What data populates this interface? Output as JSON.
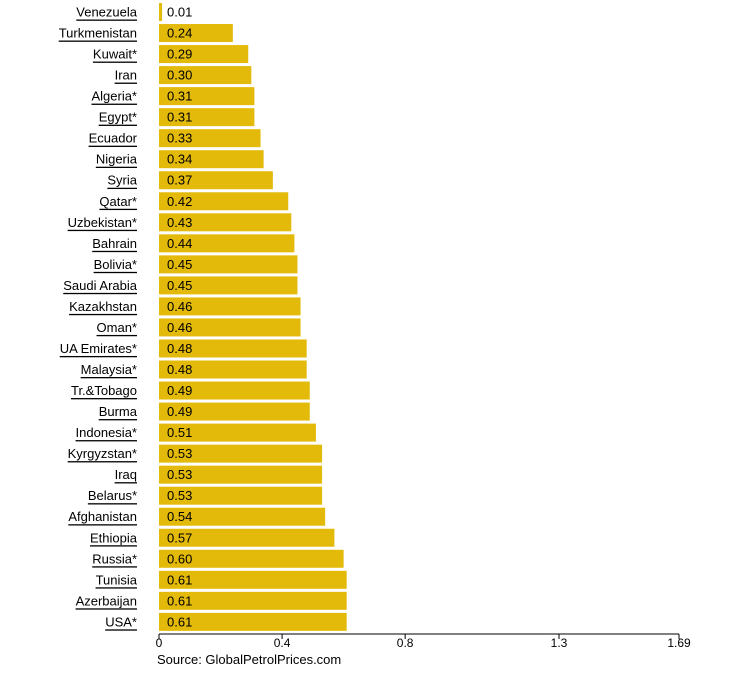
{
  "chart_data": {
    "type": "bar",
    "orientation": "horizontal",
    "categories": [
      "Venezuela",
      "Turkmenistan",
      "Kuwait*",
      "Iran",
      "Algeria*",
      "Egypt*",
      "Ecuador",
      "Nigeria",
      "Syria",
      "Qatar*",
      "Uzbekistan*",
      "Bahrain",
      "Bolivia*",
      "Saudi Arabia",
      "Kazakhstan",
      "Oman*",
      "UA Emirates*",
      "Malaysia*",
      "Tr.&Tobago",
      "Burma",
      "Indonesia*",
      "Kyrgyzstan*",
      "Iraq",
      "Belarus*",
      "Afghanistan",
      "Ethiopia",
      "Russia*",
      "Tunisia",
      "Azerbaijan",
      "USA*"
    ],
    "values": [
      0.01,
      0.24,
      0.29,
      0.3,
      0.31,
      0.31,
      0.33,
      0.34,
      0.37,
      0.42,
      0.43,
      0.44,
      0.45,
      0.45,
      0.46,
      0.46,
      0.48,
      0.48,
      0.49,
      0.49,
      0.51,
      0.53,
      0.53,
      0.53,
      0.54,
      0.57,
      0.6,
      0.61,
      0.61,
      0.61
    ],
    "value_labels": [
      "0.01",
      "0.24",
      "0.29",
      "0.30",
      "0.31",
      "0.31",
      "0.33",
      "0.34",
      "0.37",
      "0.42",
      "0.43",
      "0.44",
      "0.45",
      "0.45",
      "0.46",
      "0.46",
      "0.48",
      "0.48",
      "0.49",
      "0.49",
      "0.51",
      "0.53",
      "0.53",
      "0.53",
      "0.54",
      "0.57",
      "0.60",
      "0.61",
      "0.61",
      "0.61"
    ],
    "xlim": [
      0,
      1.69
    ],
    "x_ticks": [
      0,
      0.4,
      0.8,
      1.3,
      1.69
    ],
    "x_tick_labels": [
      "0",
      "0.4",
      "0.8",
      "1.3",
      "1.69"
    ],
    "grid": false,
    "bar_color": "#E3BA09",
    "source": "Source: GlobalPetrolPrices.com"
  }
}
